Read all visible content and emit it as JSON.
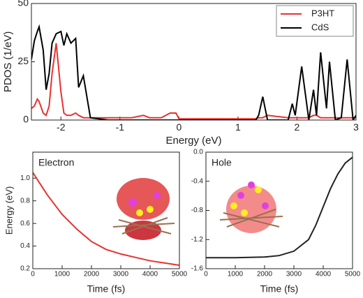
{
  "chart_data": [
    {
      "type": "line",
      "xlabel": "Energy (eV)",
      "ylabel": "PDOS (1/eV)",
      "x": [
        -2.5,
        -2.45,
        -2.4,
        -2.37,
        -2.3,
        -2.25,
        -2.2,
        -2.15,
        -2.08,
        -2.0,
        -1.95,
        -1.9,
        -1.83,
        -1.75,
        -1.7,
        -1.62,
        -1.5,
        -1.2,
        -0.8,
        -0.6,
        -0.5,
        -0.3,
        -0.15,
        -0.05,
        0,
        0.5,
        1.0,
        1.3,
        1.35,
        1.42,
        1.5,
        1.85,
        1.92,
        1.97,
        2.08,
        2.2,
        2.28,
        2.33,
        2.4,
        2.5,
        2.55,
        2.65,
        2.75,
        2.85,
        2.95,
        3.0
      ],
      "series": [
        {
          "name": "P3HT",
          "color": "#e8312f",
          "values": [
            5,
            6,
            9,
            8,
            3,
            2,
            6,
            20,
            33,
            12,
            3,
            2,
            2,
            3,
            2,
            1,
            1,
            1,
            1,
            2,
            1,
            1,
            3,
            3,
            0.5,
            0.5,
            0.5,
            0.5,
            1,
            1,
            2,
            1,
            1,
            1,
            1,
            1,
            2,
            2,
            1,
            1,
            1,
            1,
            1,
            1,
            1,
            1
          ]
        },
        {
          "name": "CdS",
          "color": "#000000",
          "values": [
            26,
            34,
            38,
            40,
            30,
            13,
            20,
            33,
            37,
            38,
            32,
            37,
            33,
            35,
            14,
            19,
            1,
            0,
            0,
            0,
            0,
            0,
            0,
            0,
            0,
            0,
            0,
            0,
            2,
            10,
            0,
            0,
            7,
            2,
            23,
            0,
            13,
            2,
            29,
            5,
            25,
            0,
            1,
            26,
            0,
            2
          ]
        }
      ],
      "xlim": [
        -2.5,
        3
      ],
      "xticks": [
        -2,
        -1,
        0,
        1,
        2,
        3
      ],
      "ylim": [
        0,
        50
      ],
      "yticks": [
        0,
        25,
        50
      ],
      "legend": "upper right"
    },
    {
      "type": "line",
      "annotation": "Electron",
      "xlabel": "Time (fs)",
      "ylabel": "Energy (eV)",
      "x": [
        0,
        250,
        500,
        1000,
        1500,
        2000,
        2500,
        3000,
        3500,
        4000,
        4500,
        5000
      ],
      "values": [
        1.05,
        0.95,
        0.85,
        0.68,
        0.55,
        0.44,
        0.37,
        0.33,
        0.3,
        0.27,
        0.25,
        0.23
      ],
      "color": "#e8312f",
      "xlim": [
        0,
        5000
      ],
      "xticks": [
        0,
        1000,
        2000,
        3000,
        4000,
        5000
      ],
      "ylim": [
        0.2,
        1.23
      ],
      "yticks": [
        0.2,
        0.4,
        0.6,
        0.8,
        {
          "value": 1.0,
          "label": "1.0"
        }
      ]
    },
    {
      "type": "line",
      "annotation": "Hole",
      "xlabel": "Time (fs)",
      "x": [
        0,
        1000,
        2000,
        2500,
        3000,
        3500,
        3750,
        4000,
        4250,
        4500,
        4750,
        5000
      ],
      "values": [
        -1.45,
        -1.45,
        -1.44,
        -1.42,
        -1.36,
        -1.2,
        -1.0,
        -0.75,
        -0.5,
        -0.3,
        -0.15,
        -0.07
      ],
      "color": "#222222",
      "xlim": [
        0,
        5000
      ],
      "xticks": [
        0,
        1000,
        2000,
        3000,
        4000,
        5000
      ],
      "ylim": [
        -1.6,
        0
      ],
      "yticks": [
        -1.6,
        -1.2,
        -0.8,
        -0.4,
        {
          "value": 0,
          "label": "0.0"
        }
      ]
    }
  ]
}
